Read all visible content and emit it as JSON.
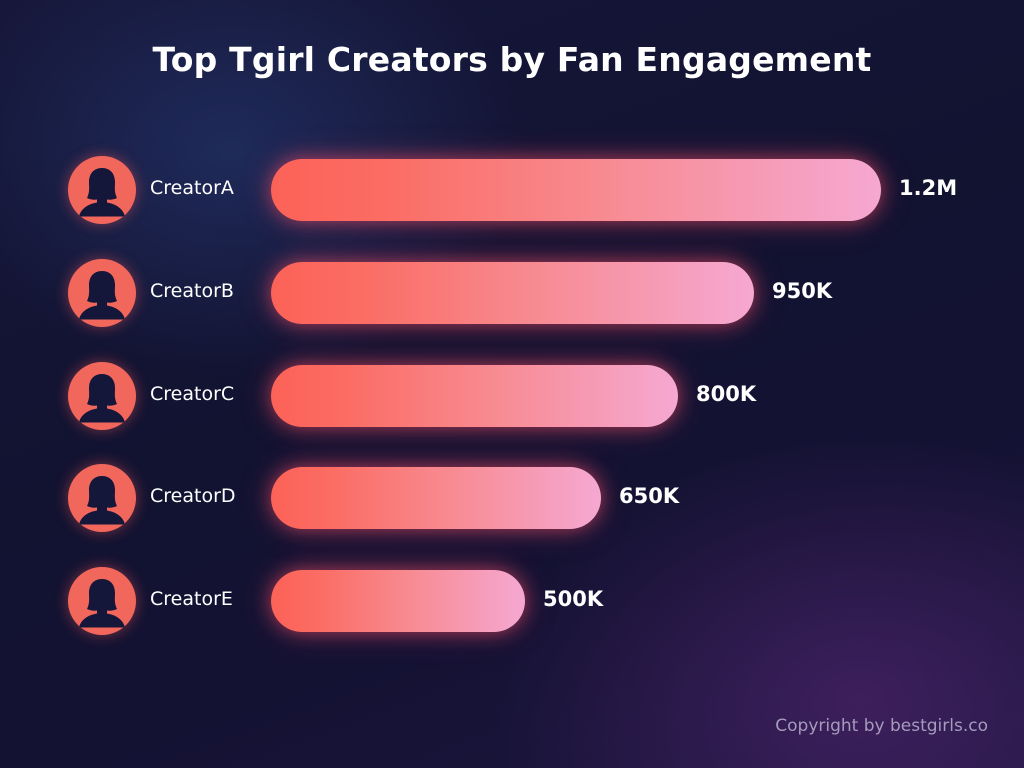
{
  "title": "Top Tgirl Creators by Fan Engagement",
  "footer": {
    "copyright": "Copyright by bestgirls.co"
  },
  "colors": {
    "background": "#131432",
    "bar_start": "#fc6258",
    "bar_end": "#f6a8d2",
    "avatar": "#f2675c",
    "avatar_silhouette": "#14163a",
    "text": "#ffffff",
    "footer_text": "#a59bbd"
  },
  "rows": [
    {
      "label": "CreatorA",
      "value_label": "1.2M",
      "icon": "person-silhouette-icon"
    },
    {
      "label": "CreatorB",
      "value_label": "950K",
      "icon": "person-silhouette-icon"
    },
    {
      "label": "CreatorC",
      "value_label": "800K",
      "icon": "person-silhouette-icon"
    },
    {
      "label": "CreatorD",
      "value_label": "650K",
      "icon": "person-silhouette-icon"
    },
    {
      "label": "CreatorE",
      "value_label": "500K",
      "icon": "person-silhouette-icon"
    }
  ],
  "chart_data": {
    "type": "bar",
    "orientation": "horizontal",
    "title": "Top Tgirl Creators by Fan Engagement",
    "categories": [
      "CreatorA",
      "CreatorB",
      "CreatorC",
      "CreatorD",
      "CreatorE"
    ],
    "values": [
      1200000,
      950000,
      800000,
      650000,
      500000
    ],
    "value_labels": [
      "1.2M",
      "950K",
      "800K",
      "650K",
      "500K"
    ],
    "xlabel": "",
    "ylabel": "",
    "grid": false,
    "legend": null,
    "annotations": [
      "Copyright by bestgirls.co"
    ]
  }
}
